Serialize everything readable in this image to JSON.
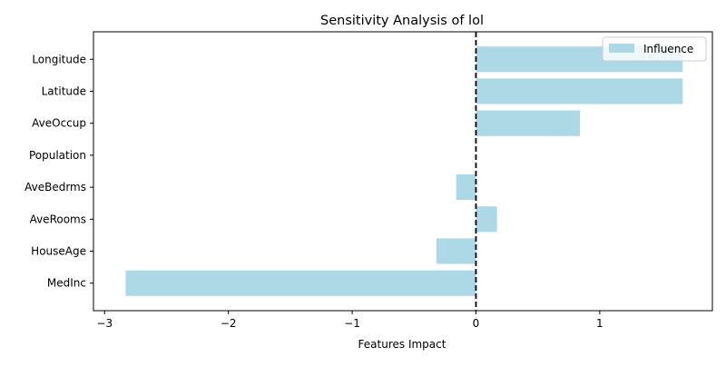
{
  "chart_data": {
    "type": "bar",
    "orientation": "horizontal",
    "title": "Sensitivity Analysis of lol",
    "xlabel": "Features Impact",
    "ylabel": "",
    "categories": [
      "MedInc",
      "HouseAge",
      "AveRooms",
      "AveBedrms",
      "Population",
      "AveOccup",
      "Latitude",
      "Longitude"
    ],
    "series": [
      {
        "name": "Influence",
        "values": [
          -2.83,
          -0.32,
          0.17,
          -0.16,
          0.0,
          0.84,
          1.67,
          1.67
        ],
        "color": "#add8e6"
      }
    ],
    "xlim": [
      -3.09,
      1.91
    ],
    "xticks": [
      -3,
      -2,
      -1,
      0,
      1
    ],
    "xtick_labels": [
      "−3",
      "−2",
      "−1",
      "0",
      "1"
    ],
    "reference_line": {
      "x": 0,
      "style": "dashed",
      "color": "#000000"
    },
    "grid": false,
    "legend_position": "top-right"
  }
}
